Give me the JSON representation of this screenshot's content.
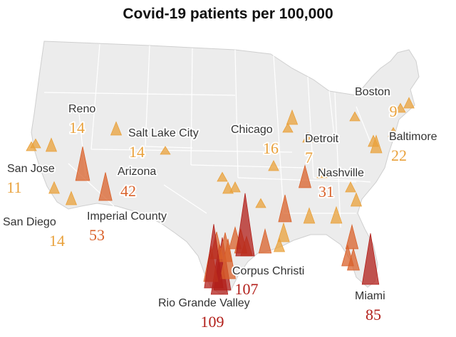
{
  "title": "Covid-19 patients per 100,000",
  "colors": {
    "low": "#e9a13b",
    "mid": "#d9622b",
    "high": "#b21f1a",
    "land": "#ececec",
    "border": "#ffffff",
    "coast": "#cfcfcf"
  },
  "chart_data": {
    "type": "map",
    "title": "Covid-19 patients per 100,000",
    "metric": "Covid-19 patients per 100,000",
    "labeled_cities": [
      {
        "name": "Boston",
        "value": 9
      },
      {
        "name": "Reno",
        "value": 14
      },
      {
        "name": "Salt Lake City",
        "value": 14
      },
      {
        "name": "Chicago",
        "value": 16
      },
      {
        "name": "Detroit",
        "value": 7
      },
      {
        "name": "Baltimore",
        "value": 22
      },
      {
        "name": "San Jose",
        "value": 11
      },
      {
        "name": "Arizona",
        "value": 42
      },
      {
        "name": "Nashville",
        "value": 31
      },
      {
        "name": "San Diego",
        "value": 14
      },
      {
        "name": "Imperial County",
        "value": 53
      },
      {
        "name": "Corpus Christi",
        "value": 107
      },
      {
        "name": "Rio Grande Valley",
        "value": 109
      },
      {
        "name": "Miami",
        "value": 85
      }
    ]
  }
}
